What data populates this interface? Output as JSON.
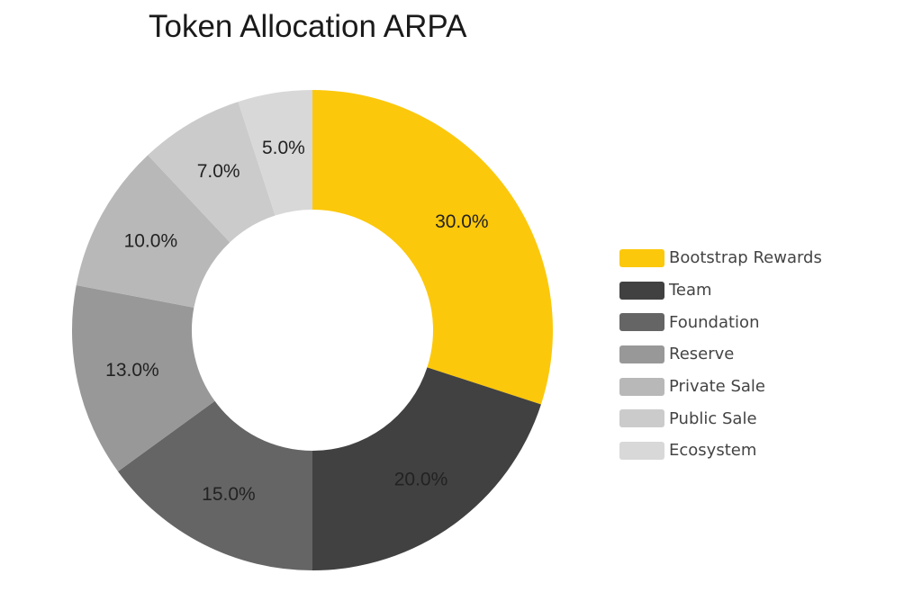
{
  "chart_data": {
    "type": "pie",
    "title": "Token Allocation ARPA",
    "donut": true,
    "legend_position": "right",
    "slices": [
      {
        "label": "Bootstrap Rewards",
        "value": 30.0,
        "display": "30.0%",
        "color": "#fcc80b"
      },
      {
        "label": "Team",
        "value": 20.0,
        "display": "20.0%",
        "color": "#414141"
      },
      {
        "label": "Foundation",
        "value": 15.0,
        "display": "15.0%",
        "color": "#656565"
      },
      {
        "label": "Reserve",
        "value": 13.0,
        "display": "13.0%",
        "color": "#989898"
      },
      {
        "label": "Private Sale",
        "value": 10.0,
        "display": "10.0%",
        "color": "#b8b8b8"
      },
      {
        "label": "Public Sale",
        "value": 7.0,
        "display": "7.0%",
        "color": "#cbcbcb"
      },
      {
        "label": "Ecosystem",
        "value": 5.0,
        "display": "5.0%",
        "color": "#d8d8d8"
      }
    ]
  }
}
